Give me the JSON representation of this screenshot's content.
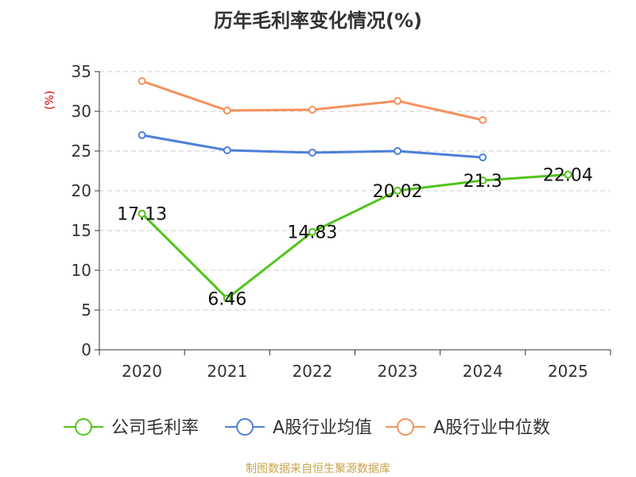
{
  "chart_data": {
    "type": "line",
    "title": "历年毛利率变化情况(%)",
    "ylabel": "(%)",
    "xlabel": "",
    "categories": [
      "2020",
      "2021",
      "2022",
      "2023",
      "2024",
      "2025"
    ],
    "ylim": [
      0,
      35
    ],
    "yticks": [
      0,
      5,
      10,
      15,
      20,
      25,
      30,
      35
    ],
    "grid": true,
    "legend_position": "bottom-center",
    "series": [
      {
        "name": "公司毛利率",
        "color": "#52c41a",
        "values": [
          17.13,
          6.46,
          14.83,
          20.02,
          21.3,
          22.04
        ],
        "labels": [
          "17.13",
          "6.46",
          "14.83",
          "20.02",
          "21.3",
          "22.04"
        ]
      },
      {
        "name": "A股行业均值",
        "color": "#4e7fdc",
        "values": [
          27.0,
          25.1,
          24.8,
          25.0,
          24.2,
          null
        ],
        "labels": []
      },
      {
        "name": "A股行业中位数",
        "color": "#f4925c",
        "values": [
          33.8,
          30.1,
          30.2,
          31.3,
          28.9,
          null
        ],
        "labels": []
      }
    ]
  },
  "source_note": "制图数据来自恒生聚源数据库"
}
